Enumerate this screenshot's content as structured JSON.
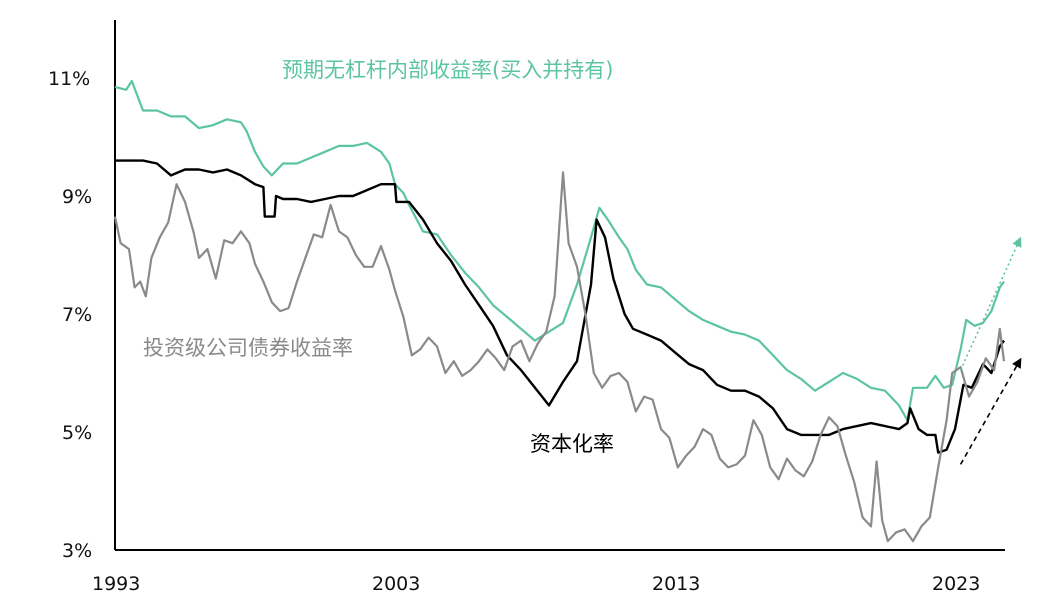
{
  "chart_data": {
    "type": "line",
    "title": "",
    "xlabel": "",
    "ylabel": "",
    "xlim": [
      1993,
      2025.5
    ],
    "ylim": [
      3,
      12
    ],
    "x_ticks": [
      "1993",
      "2003",
      "2013",
      "2023"
    ],
    "y_ticks": [
      "3%",
      "5%",
      "7%",
      "9%",
      "11%"
    ],
    "grid": false,
    "colors": {
      "unlevered_irr": "#5cc4a0",
      "cap_rate": "#000000",
      "ig_bond": "#8a8a8a"
    },
    "series": [
      {
        "key": "unlevered_irr",
        "name": "预期无杠杆内部收益率(买入并持有)",
        "points": [
          [
            1993.0,
            10.85
          ],
          [
            1993.4,
            10.8
          ],
          [
            1993.6,
            10.95
          ],
          [
            1994.0,
            10.45
          ],
          [
            1994.5,
            10.45
          ],
          [
            1995.0,
            10.35
          ],
          [
            1995.5,
            10.35
          ],
          [
            1996.0,
            10.15
          ],
          [
            1996.5,
            10.2
          ],
          [
            1997.0,
            10.3
          ],
          [
            1997.5,
            10.25
          ],
          [
            1997.7,
            10.1
          ],
          [
            1998.0,
            9.75
          ],
          [
            1998.3,
            9.5
          ],
          [
            1998.6,
            9.35
          ],
          [
            1999.0,
            9.55
          ],
          [
            1999.5,
            9.55
          ],
          [
            2000.0,
            9.65
          ],
          [
            2000.5,
            9.75
          ],
          [
            2001.0,
            9.85
          ],
          [
            2001.5,
            9.85
          ],
          [
            2002.0,
            9.9
          ],
          [
            2002.5,
            9.75
          ],
          [
            2002.8,
            9.55
          ],
          [
            2003.0,
            9.2
          ],
          [
            2003.3,
            9.05
          ],
          [
            2003.5,
            8.85
          ],
          [
            2004.0,
            8.4
          ],
          [
            2004.5,
            8.35
          ],
          [
            2005.0,
            8.0
          ],
          [
            2005.5,
            7.7
          ],
          [
            2006.0,
            7.45
          ],
          [
            2006.5,
            7.15
          ],
          [
            2007.0,
            6.95
          ],
          [
            2007.5,
            6.75
          ],
          [
            2008.0,
            6.55
          ],
          [
            2008.5,
            6.7
          ],
          [
            2009.0,
            6.85
          ],
          [
            2009.5,
            7.5
          ],
          [
            2010.0,
            8.3
          ],
          [
            2010.3,
            8.8
          ],
          [
            2010.6,
            8.6
          ],
          [
            2011.0,
            8.3
          ],
          [
            2011.3,
            8.1
          ],
          [
            2011.6,
            7.75
          ],
          [
            2012.0,
            7.5
          ],
          [
            2012.5,
            7.45
          ],
          [
            2013.0,
            7.25
          ],
          [
            2013.5,
            7.05
          ],
          [
            2014.0,
            6.9
          ],
          [
            2014.5,
            6.8
          ],
          [
            2015.0,
            6.7
          ],
          [
            2015.5,
            6.65
          ],
          [
            2016.0,
            6.55
          ],
          [
            2016.5,
            6.3
          ],
          [
            2017.0,
            6.05
          ],
          [
            2017.5,
            5.9
          ],
          [
            2018.0,
            5.7
          ],
          [
            2018.5,
            5.85
          ],
          [
            2019.0,
            6.0
          ],
          [
            2019.5,
            5.9
          ],
          [
            2020.0,
            5.75
          ],
          [
            2020.5,
            5.7
          ],
          [
            2021.0,
            5.45
          ],
          [
            2021.3,
            5.2
          ],
          [
            2021.5,
            5.75
          ],
          [
            2022.0,
            5.75
          ],
          [
            2022.3,
            5.95
          ],
          [
            2022.6,
            5.75
          ],
          [
            2022.9,
            5.8
          ],
          [
            2023.2,
            6.4
          ],
          [
            2023.4,
            6.9
          ],
          [
            2023.7,
            6.8
          ],
          [
            2024.0,
            6.85
          ],
          [
            2024.3,
            7.05
          ],
          [
            2024.6,
            7.45
          ],
          [
            2024.75,
            7.55
          ]
        ]
      },
      {
        "key": "cap_rate",
        "name": "资本化率",
        "points": [
          [
            1993.0,
            9.6
          ],
          [
            1994.0,
            9.6
          ],
          [
            1994.5,
            9.55
          ],
          [
            1995.0,
            9.35
          ],
          [
            1995.5,
            9.45
          ],
          [
            1996.0,
            9.45
          ],
          [
            1996.5,
            9.4
          ],
          [
            1997.0,
            9.45
          ],
          [
            1997.5,
            9.35
          ],
          [
            1998.0,
            9.2
          ],
          [
            1998.3,
            9.15
          ],
          [
            1998.35,
            8.65
          ],
          [
            1998.7,
            8.65
          ],
          [
            1998.75,
            9.0
          ],
          [
            1999.0,
            8.95
          ],
          [
            1999.5,
            8.95
          ],
          [
            2000.0,
            8.9
          ],
          [
            2000.5,
            8.95
          ],
          [
            2001.0,
            9.0
          ],
          [
            2001.5,
            9.0
          ],
          [
            2002.0,
            9.1
          ],
          [
            2002.5,
            9.2
          ],
          [
            2003.0,
            9.2
          ],
          [
            2003.05,
            8.9
          ],
          [
            2003.5,
            8.9
          ],
          [
            2004.0,
            8.6
          ],
          [
            2004.5,
            8.2
          ],
          [
            2005.0,
            7.9
          ],
          [
            2005.5,
            7.5
          ],
          [
            2006.0,
            7.15
          ],
          [
            2006.5,
            6.8
          ],
          [
            2007.0,
            6.3
          ],
          [
            2007.5,
            6.05
          ],
          [
            2008.0,
            5.75
          ],
          [
            2008.5,
            5.45
          ],
          [
            2009.0,
            5.85
          ],
          [
            2009.5,
            6.2
          ],
          [
            2010.0,
            7.5
          ],
          [
            2010.2,
            8.6
          ],
          [
            2010.5,
            8.3
          ],
          [
            2010.8,
            7.6
          ],
          [
            2011.2,
            7.0
          ],
          [
            2011.5,
            6.75
          ],
          [
            2012.0,
            6.65
          ],
          [
            2012.5,
            6.55
          ],
          [
            2013.0,
            6.35
          ],
          [
            2013.5,
            6.15
          ],
          [
            2014.0,
            6.05
          ],
          [
            2014.5,
            5.8
          ],
          [
            2015.0,
            5.7
          ],
          [
            2015.5,
            5.7
          ],
          [
            2016.0,
            5.6
          ],
          [
            2016.5,
            5.4
          ],
          [
            2017.0,
            5.05
          ],
          [
            2017.5,
            4.95
          ],
          [
            2018.0,
            4.95
          ],
          [
            2018.5,
            4.95
          ],
          [
            2019.0,
            5.05
          ],
          [
            2019.5,
            5.1
          ],
          [
            2020.0,
            5.15
          ],
          [
            2020.5,
            5.1
          ],
          [
            2021.0,
            5.05
          ],
          [
            2021.3,
            5.15
          ],
          [
            2021.4,
            5.4
          ],
          [
            2021.7,
            5.05
          ],
          [
            2022.0,
            4.95
          ],
          [
            2022.3,
            4.95
          ],
          [
            2022.4,
            4.65
          ],
          [
            2022.7,
            4.7
          ],
          [
            2023.0,
            5.05
          ],
          [
            2023.3,
            5.8
          ],
          [
            2023.6,
            5.75
          ],
          [
            2024.0,
            6.15
          ],
          [
            2024.3,
            6.0
          ],
          [
            2024.6,
            6.45
          ],
          [
            2024.75,
            6.55
          ]
        ]
      },
      {
        "key": "ig_bond",
        "name": "投资级公司债券收益率",
        "points": [
          [
            1993.0,
            8.65
          ],
          [
            1993.2,
            8.2
          ],
          [
            1993.5,
            8.1
          ],
          [
            1993.7,
            7.45
          ],
          [
            1993.9,
            7.55
          ],
          [
            1994.1,
            7.3
          ],
          [
            1994.3,
            7.95
          ],
          [
            1994.6,
            8.3
          ],
          [
            1994.9,
            8.55
          ],
          [
            1995.2,
            9.2
          ],
          [
            1995.5,
            8.9
          ],
          [
            1995.8,
            8.4
          ],
          [
            1996.0,
            7.95
          ],
          [
            1996.3,
            8.1
          ],
          [
            1996.6,
            7.6
          ],
          [
            1996.9,
            8.25
          ],
          [
            1997.2,
            8.2
          ],
          [
            1997.5,
            8.4
          ],
          [
            1997.8,
            8.2
          ],
          [
            1998.0,
            7.85
          ],
          [
            1998.3,
            7.55
          ],
          [
            1998.6,
            7.2
          ],
          [
            1998.9,
            7.05
          ],
          [
            1999.2,
            7.1
          ],
          [
            1999.5,
            7.55
          ],
          [
            1999.8,
            7.95
          ],
          [
            2000.1,
            8.35
          ],
          [
            2000.4,
            8.3
          ],
          [
            2000.7,
            8.85
          ],
          [
            2001.0,
            8.4
          ],
          [
            2001.3,
            8.3
          ],
          [
            2001.6,
            8.0
          ],
          [
            2001.9,
            7.8
          ],
          [
            2002.2,
            7.8
          ],
          [
            2002.5,
            8.15
          ],
          [
            2002.8,
            7.75
          ],
          [
            2003.0,
            7.4
          ],
          [
            2003.3,
            6.95
          ],
          [
            2003.6,
            6.3
          ],
          [
            2003.9,
            6.4
          ],
          [
            2004.2,
            6.6
          ],
          [
            2004.5,
            6.45
          ],
          [
            2004.8,
            6.0
          ],
          [
            2005.1,
            6.2
          ],
          [
            2005.4,
            5.95
          ],
          [
            2005.7,
            6.05
          ],
          [
            2006.0,
            6.2
          ],
          [
            2006.3,
            6.4
          ],
          [
            2006.6,
            6.25
          ],
          [
            2006.9,
            6.05
          ],
          [
            2007.2,
            6.45
          ],
          [
            2007.5,
            6.55
          ],
          [
            2007.8,
            6.2
          ],
          [
            2008.1,
            6.5
          ],
          [
            2008.4,
            6.7
          ],
          [
            2008.7,
            7.3
          ],
          [
            2009.0,
            9.4
          ],
          [
            2009.2,
            8.2
          ],
          [
            2009.5,
            7.8
          ],
          [
            2009.8,
            7.0
          ],
          [
            2010.1,
            6.0
          ],
          [
            2010.4,
            5.75
          ],
          [
            2010.7,
            5.95
          ],
          [
            2011.0,
            6.0
          ],
          [
            2011.3,
            5.85
          ],
          [
            2011.6,
            5.35
          ],
          [
            2011.9,
            5.6
          ],
          [
            2012.2,
            5.55
          ],
          [
            2012.5,
            5.05
          ],
          [
            2012.8,
            4.9
          ],
          [
            2013.1,
            4.4
          ],
          [
            2013.4,
            4.6
          ],
          [
            2013.7,
            4.75
          ],
          [
            2014.0,
            5.05
          ],
          [
            2014.3,
            4.95
          ],
          [
            2014.6,
            4.55
          ],
          [
            2014.9,
            4.4
          ],
          [
            2015.2,
            4.45
          ],
          [
            2015.5,
            4.6
          ],
          [
            2015.8,
            5.2
          ],
          [
            2016.1,
            4.95
          ],
          [
            2016.4,
            4.4
          ],
          [
            2016.7,
            4.2
          ],
          [
            2017.0,
            4.55
          ],
          [
            2017.3,
            4.35
          ],
          [
            2017.6,
            4.25
          ],
          [
            2017.9,
            4.5
          ],
          [
            2018.2,
            4.95
          ],
          [
            2018.5,
            5.25
          ],
          [
            2018.8,
            5.1
          ],
          [
            2019.1,
            4.6
          ],
          [
            2019.4,
            4.15
          ],
          [
            2019.7,
            3.55
          ],
          [
            2020.0,
            3.4
          ],
          [
            2020.2,
            4.5
          ],
          [
            2020.4,
            3.5
          ],
          [
            2020.6,
            3.15
          ],
          [
            2020.9,
            3.3
          ],
          [
            2021.2,
            3.35
          ],
          [
            2021.5,
            3.15
          ],
          [
            2021.8,
            3.4
          ],
          [
            2022.1,
            3.55
          ],
          [
            2022.4,
            4.4
          ],
          [
            2022.7,
            5.2
          ],
          [
            2022.9,
            6.0
          ],
          [
            2023.2,
            6.1
          ],
          [
            2023.5,
            5.6
          ],
          [
            2023.8,
            5.85
          ],
          [
            2024.1,
            6.25
          ],
          [
            2024.4,
            6.05
          ],
          [
            2024.6,
            6.75
          ],
          [
            2024.75,
            6.2
          ]
        ]
      }
    ],
    "annotations": {
      "irr_label": "预期无杠杆内部收益率(买入并持有)",
      "cap_label": "资本化率",
      "bond_label": "投资级公司债券收益率"
    },
    "trend_arrows": [
      {
        "series": "unlevered_irr",
        "style": "dotted",
        "from": [
          2023.2,
          6.05
        ],
        "to": [
          2025.3,
          8.25
        ]
      },
      {
        "series": "cap_rate",
        "style": "dashed",
        "from": [
          2023.2,
          4.45
        ],
        "to": [
          2025.3,
          6.2
        ]
      }
    ]
  }
}
